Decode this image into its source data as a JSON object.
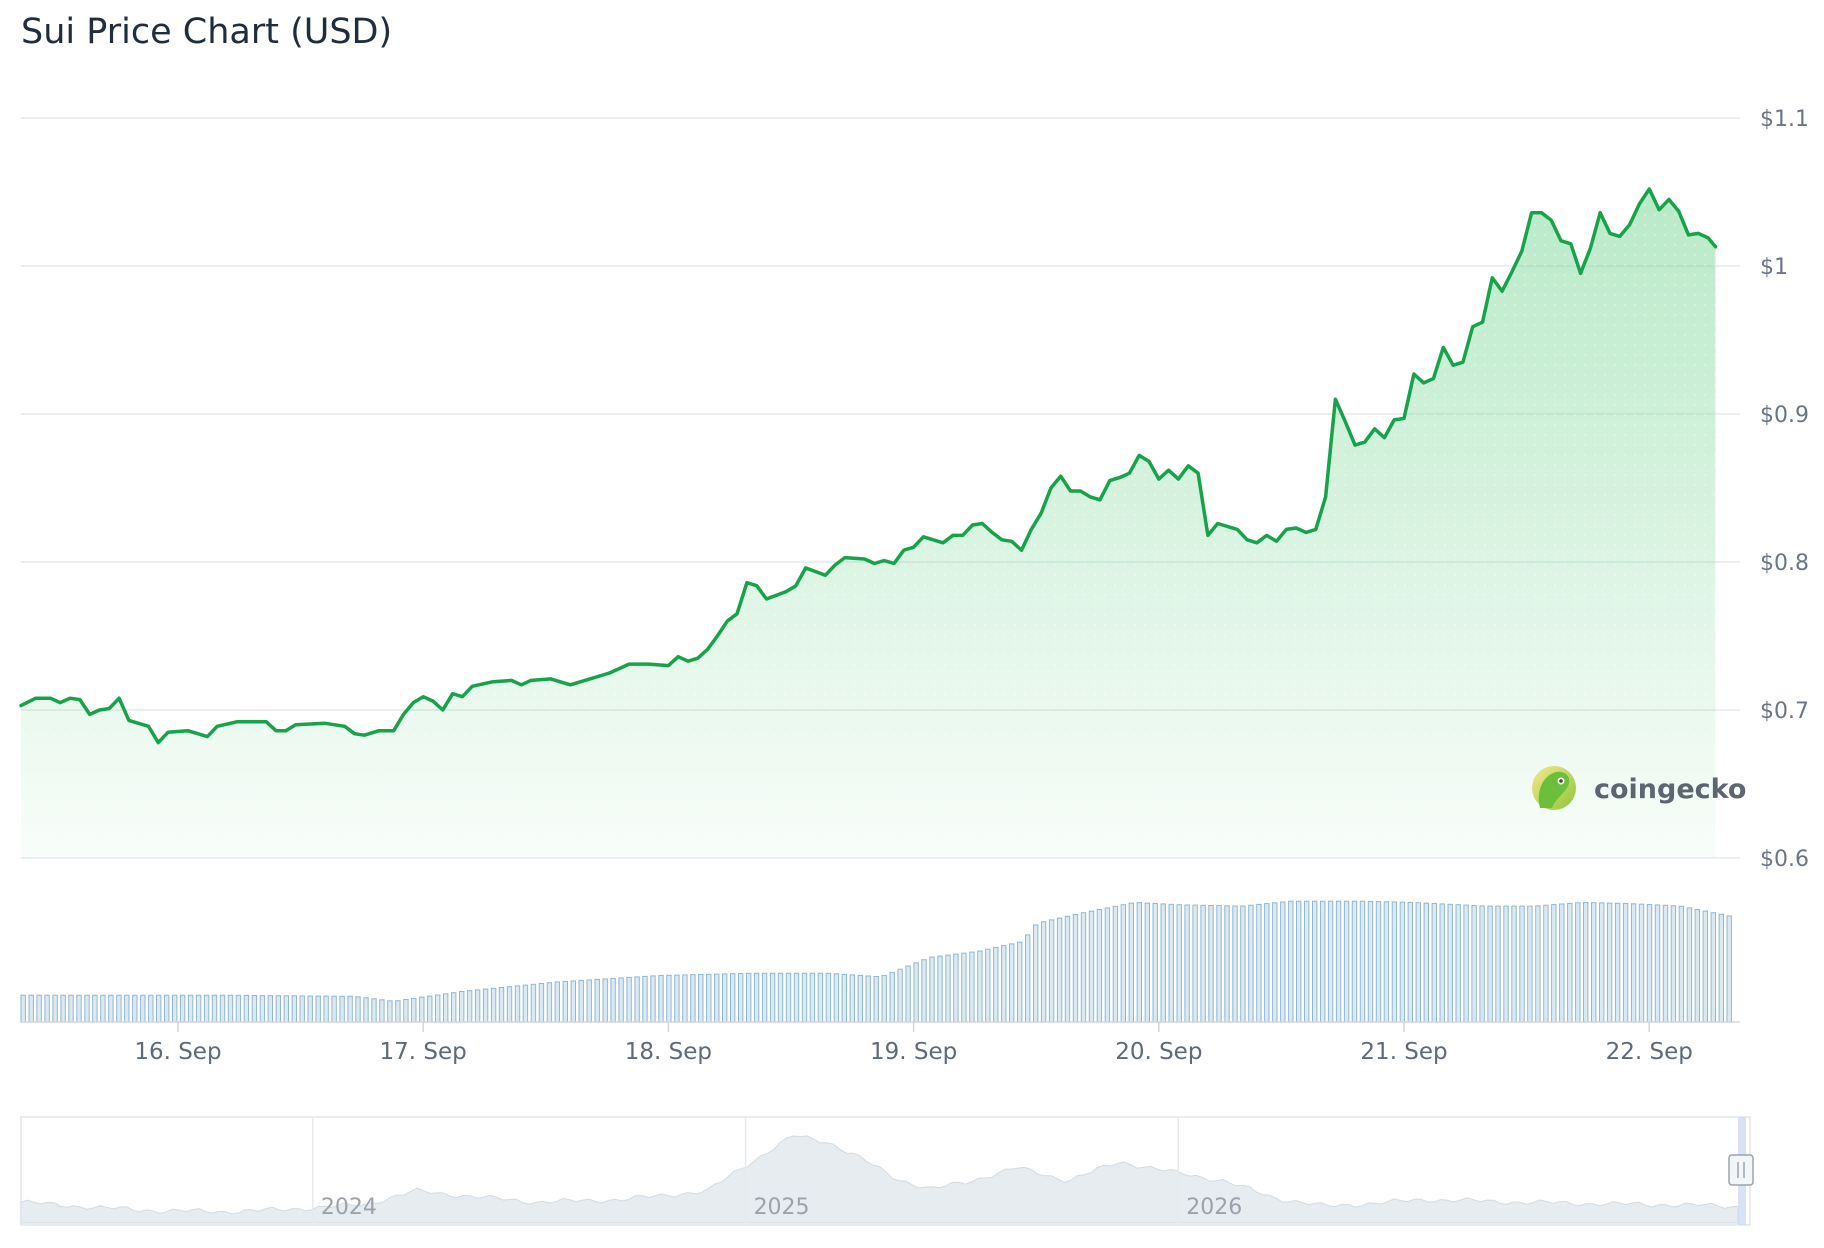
{
  "page": {
    "title": "Sui Price Chart (USD)"
  },
  "watermark": {
    "text": "coingecko",
    "icon": "gecko-logo-icon"
  },
  "colors": {
    "price_line": "#16a34a",
    "area_fill": "#7fd89a",
    "volume_bar": "#8fb8d4",
    "grid": "#e6e9ed",
    "navigator_area": "#e6ecf0"
  },
  "chart_data": {
    "type": "line",
    "title": "Sui Price Chart (USD)",
    "xlabel": "",
    "ylabel": "",
    "y_axis_side": "right",
    "grid": true,
    "ylim": [
      0.6,
      1.1
    ],
    "y_ticks": [
      {
        "value": 1.1,
        "label": "$1.1"
      },
      {
        "value": 1.0,
        "label": "$1"
      },
      {
        "value": 0.9,
        "label": "$0.9"
      },
      {
        "value": 0.8,
        "label": "$0.8"
      },
      {
        "value": 0.7,
        "label": "$0.7"
      },
      {
        "value": 0.6,
        "label": "$0.6"
      }
    ],
    "x_range_days": [
      -0.64,
      6.37
    ],
    "x_ticks": [
      {
        "day": 0,
        "label": "16. Sep"
      },
      {
        "day": 1,
        "label": "17. Sep"
      },
      {
        "day": 2,
        "label": "18. Sep"
      },
      {
        "day": 3,
        "label": "19. Sep"
      },
      {
        "day": 4,
        "label": "20. Sep"
      },
      {
        "day": 5,
        "label": "21. Sep"
      },
      {
        "day": 6,
        "label": "22. Sep"
      }
    ],
    "series": [
      {
        "type": "line",
        "anchor_points": [
          [
            -0.64,
            0.703
          ],
          [
            -0.58,
            0.708
          ],
          [
            -0.52,
            0.708
          ],
          [
            -0.48,
            0.705
          ],
          [
            -0.44,
            0.708
          ],
          [
            -0.4,
            0.707
          ],
          [
            -0.36,
            0.697
          ],
          [
            -0.32,
            0.7
          ],
          [
            -0.28,
            0.701
          ],
          [
            -0.24,
            0.708
          ],
          [
            -0.2,
            0.693
          ],
          [
            -0.12,
            0.689
          ],
          [
            -0.08,
            0.678
          ],
          [
            -0.04,
            0.685
          ],
          [
            0.04,
            0.686
          ],
          [
            0.12,
            0.682
          ],
          [
            0.16,
            0.689
          ],
          [
            0.24,
            0.692
          ],
          [
            0.36,
            0.692
          ],
          [
            0.4,
            0.686
          ],
          [
            0.44,
            0.686
          ],
          [
            0.48,
            0.69
          ],
          [
            0.6,
            0.691
          ],
          [
            0.68,
            0.689
          ],
          [
            0.72,
            0.684
          ],
          [
            0.76,
            0.683
          ],
          [
            0.82,
            0.686
          ],
          [
            0.88,
            0.686
          ],
          [
            0.92,
            0.697
          ],
          [
            0.96,
            0.705
          ],
          [
            1.0,
            0.709
          ],
          [
            1.04,
            0.706
          ],
          [
            1.08,
            0.7
          ],
          [
            1.12,
            0.711
          ],
          [
            1.16,
            0.709
          ],
          [
            1.2,
            0.716
          ],
          [
            1.28,
            0.719
          ],
          [
            1.36,
            0.72
          ],
          [
            1.4,
            0.717
          ],
          [
            1.44,
            0.72
          ],
          [
            1.52,
            0.721
          ],
          [
            1.6,
            0.717
          ],
          [
            1.68,
            0.721
          ],
          [
            1.76,
            0.725
          ],
          [
            1.84,
            0.731
          ],
          [
            1.92,
            0.731
          ],
          [
            2.0,
            0.73
          ],
          [
            2.04,
            0.736
          ],
          [
            2.08,
            0.733
          ],
          [
            2.12,
            0.735
          ],
          [
            2.16,
            0.741
          ],
          [
            2.2,
            0.75
          ],
          [
            2.24,
            0.76
          ],
          [
            2.28,
            0.765
          ],
          [
            2.32,
            0.786
          ],
          [
            2.36,
            0.784
          ],
          [
            2.4,
            0.775
          ],
          [
            2.48,
            0.78
          ],
          [
            2.52,
            0.784
          ],
          [
            2.56,
            0.796
          ],
          [
            2.64,
            0.791
          ],
          [
            2.68,
            0.798
          ],
          [
            2.72,
            0.803
          ],
          [
            2.8,
            0.802
          ],
          [
            2.84,
            0.799
          ],
          [
            2.88,
            0.801
          ],
          [
            2.92,
            0.799
          ],
          [
            2.96,
            0.808
          ],
          [
            3.0,
            0.81
          ],
          [
            3.04,
            0.817
          ],
          [
            3.08,
            0.815
          ],
          [
            3.12,
            0.813
          ],
          [
            3.16,
            0.818
          ],
          [
            3.2,
            0.818
          ],
          [
            3.24,
            0.825
          ],
          [
            3.28,
            0.826
          ],
          [
            3.32,
            0.82
          ],
          [
            3.36,
            0.815
          ],
          [
            3.4,
            0.814
          ],
          [
            3.44,
            0.808
          ],
          [
            3.48,
            0.822
          ],
          [
            3.52,
            0.833
          ],
          [
            3.56,
            0.85
          ],
          [
            3.6,
            0.858
          ],
          [
            3.64,
            0.848
          ],
          [
            3.68,
            0.848
          ],
          [
            3.72,
            0.844
          ],
          [
            3.76,
            0.842
          ],
          [
            3.8,
            0.855
          ],
          [
            3.84,
            0.857
          ],
          [
            3.88,
            0.86
          ],
          [
            3.92,
            0.872
          ],
          [
            3.96,
            0.868
          ],
          [
            4.0,
            0.856
          ],
          [
            4.04,
            0.862
          ],
          [
            4.08,
            0.856
          ],
          [
            4.12,
            0.865
          ],
          [
            4.16,
            0.86
          ],
          [
            4.2,
            0.818
          ],
          [
            4.24,
            0.826
          ],
          [
            4.32,
            0.822
          ],
          [
            4.36,
            0.815
          ],
          [
            4.4,
            0.813
          ],
          [
            4.44,
            0.818
          ],
          [
            4.48,
            0.814
          ],
          [
            4.52,
            0.822
          ],
          [
            4.56,
            0.823
          ],
          [
            4.6,
            0.82
          ],
          [
            4.64,
            0.822
          ],
          [
            4.68,
            0.844
          ],
          [
            4.72,
            0.91
          ],
          [
            4.76,
            0.895
          ],
          [
            4.8,
            0.879
          ],
          [
            4.84,
            0.881
          ],
          [
            4.88,
            0.89
          ],
          [
            4.92,
            0.884
          ],
          [
            4.96,
            0.896
          ],
          [
            5.0,
            0.897
          ],
          [
            5.04,
            0.927
          ],
          [
            5.08,
            0.921
          ],
          [
            5.12,
            0.924
          ],
          [
            5.16,
            0.945
          ],
          [
            5.2,
            0.933
          ],
          [
            5.24,
            0.935
          ],
          [
            5.28,
            0.959
          ],
          [
            5.32,
            0.962
          ],
          [
            5.36,
            0.992
          ],
          [
            5.4,
            0.983
          ],
          [
            5.44,
            0.996
          ],
          [
            5.48,
            1.01
          ],
          [
            5.52,
            1.036
          ],
          [
            5.56,
            1.036
          ],
          [
            5.6,
            1.031
          ],
          [
            5.64,
            1.017
          ],
          [
            5.68,
            1.015
          ],
          [
            5.72,
            0.995
          ],
          [
            5.76,
            1.012
          ],
          [
            5.8,
            1.036
          ],
          [
            5.84,
            1.022
          ],
          [
            5.88,
            1.02
          ],
          [
            5.92,
            1.028
          ],
          [
            5.96,
            1.042
          ],
          [
            6.0,
            1.052
          ],
          [
            6.04,
            1.038
          ],
          [
            6.08,
            1.045
          ],
          [
            6.12,
            1.037
          ],
          [
            6.16,
            1.021
          ],
          [
            6.2,
            1.022
          ],
          [
            6.24,
            1.019
          ],
          [
            6.27,
            1.013
          ]
        ]
      },
      {
        "type": "bar",
        "role": "volume",
        "count": 215,
        "relative_heights": [
          [
            0,
            0.22
          ],
          [
            40,
            0.22
          ],
          [
            68,
            0.21
          ],
          [
            76,
            0.17
          ],
          [
            90,
            0.25
          ],
          [
            110,
            0.33
          ],
          [
            130,
            0.38
          ],
          [
            150,
            0.4
          ],
          [
            165,
            0.4
          ],
          [
            176,
            0.37
          ],
          [
            186,
            0.53
          ],
          [
            196,
            0.58
          ],
          [
            205,
            0.66
          ],
          [
            208,
            0.81
          ],
          [
            218,
            0.9
          ],
          [
            228,
            0.98
          ],
          [
            238,
            0.96
          ],
          [
            250,
            0.95
          ],
          [
            260,
            0.99
          ],
          [
            275,
            0.99
          ],
          [
            285,
            0.98
          ],
          [
            300,
            0.95
          ],
          [
            310,
            0.95
          ],
          [
            320,
            0.98
          ],
          [
            330,
            0.97
          ],
          [
            340,
            0.95
          ],
          [
            350,
            0.87
          ]
        ]
      }
    ],
    "navigator": {
      "type": "area",
      "x_ticks": [
        "2024",
        "2025",
        "2026"
      ],
      "relative_levels": [
        [
          0,
          0.15
        ],
        [
          2,
          0.12
        ],
        [
          5,
          0.08
        ],
        [
          8,
          0.05
        ],
        [
          12,
          0.04
        ],
        [
          15,
          0.06
        ],
        [
          20,
          0.12
        ],
        [
          23,
          0.28
        ],
        [
          26,
          0.22
        ],
        [
          30,
          0.15
        ],
        [
          35,
          0.18
        ],
        [
          40,
          0.28
        ],
        [
          42,
          0.55
        ],
        [
          44,
          0.8
        ],
        [
          45,
          0.92
        ],
        [
          47,
          0.85
        ],
        [
          49,
          0.65
        ],
        [
          51,
          0.42
        ],
        [
          53,
          0.3
        ],
        [
          55,
          0.38
        ],
        [
          58,
          0.55
        ],
        [
          61,
          0.4
        ],
        [
          64,
          0.62
        ],
        [
          67,
          0.5
        ],
        [
          70,
          0.4
        ],
        [
          73,
          0.2
        ],
        [
          76,
          0.1
        ],
        [
          79,
          0.14
        ],
        [
          82,
          0.18
        ],
        [
          87,
          0.15
        ],
        [
          92,
          0.13
        ],
        [
          96,
          0.12
        ],
        [
          100,
          0.1
        ]
      ]
    }
  }
}
